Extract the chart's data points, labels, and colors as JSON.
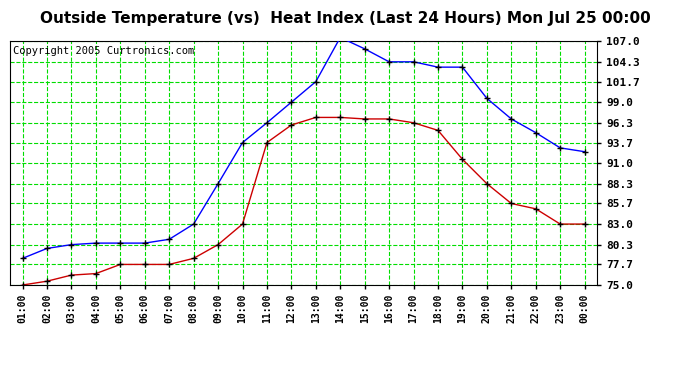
{
  "title": "Outside Temperature (vs)  Heat Index (Last 24 Hours) Mon Jul 25 00:00",
  "copyright": "Copyright 2005 Curtronics.com",
  "x_labels": [
    "01:00",
    "02:00",
    "03:00",
    "04:00",
    "05:00",
    "06:00",
    "07:00",
    "08:00",
    "09:00",
    "10:00",
    "11:00",
    "12:00",
    "13:00",
    "14:00",
    "15:00",
    "16:00",
    "17:00",
    "18:00",
    "19:00",
    "20:00",
    "21:00",
    "22:00",
    "23:00",
    "00:00"
  ],
  "blue_data": [
    78.5,
    79.8,
    80.3,
    80.5,
    80.5,
    80.5,
    81.0,
    83.0,
    88.3,
    93.7,
    96.3,
    99.0,
    101.7,
    107.5,
    106.0,
    104.3,
    104.3,
    103.6,
    103.6,
    99.5,
    96.8,
    95.0,
    93.0,
    92.5
  ],
  "red_data": [
    75.0,
    75.5,
    76.3,
    76.5,
    77.7,
    77.7,
    77.7,
    78.5,
    80.3,
    83.0,
    93.7,
    96.0,
    97.0,
    97.0,
    96.8,
    96.8,
    96.3,
    95.3,
    91.5,
    88.3,
    85.7,
    85.0,
    83.0,
    83.0
  ],
  "y_ticks": [
    75.0,
    77.7,
    80.3,
    83.0,
    85.7,
    88.3,
    91.0,
    93.7,
    96.3,
    99.0,
    101.7,
    104.3,
    107.0
  ],
  "y_min": 75.0,
  "y_max": 107.0,
  "bg_color": "#ffffff",
  "plot_bg_color": "#ffffff",
  "grid_color": "#00dd00",
  "blue_color": "#0000ff",
  "red_color": "#cc0000",
  "title_fontsize": 11,
  "copyright_fontsize": 7.5,
  "marker_color_blue": "#000000",
  "marker_color_red": "#000000"
}
